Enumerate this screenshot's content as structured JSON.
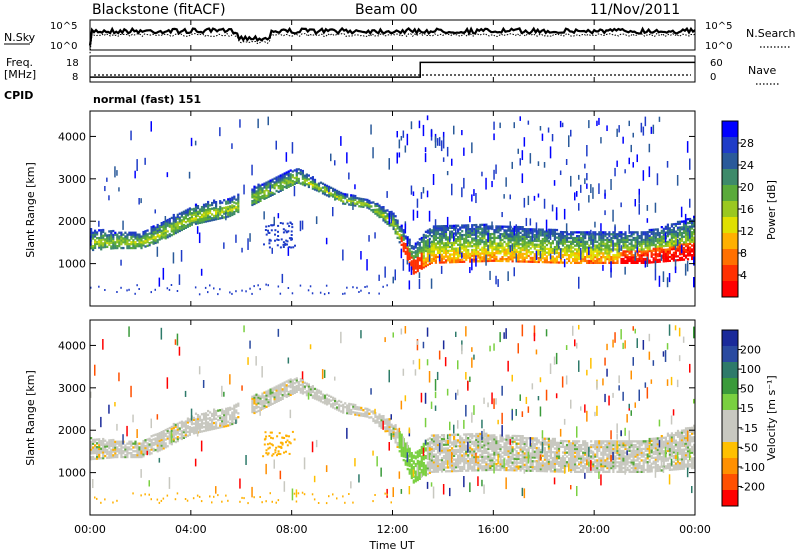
{
  "header": {
    "title": "Blackstone (fitACF)",
    "beam": "Beam 00",
    "date": "11/Nov/2011"
  },
  "nsky_panel": {
    "left_label": "N.Sky",
    "left_ticks": [
      "10^5",
      "10^0"
    ],
    "right_ticks": [
      "10^5",
      "10^0"
    ],
    "right_label": "N.Search"
  },
  "freq_panel": {
    "left_label_1": "Freq.",
    "left_label_2": "[MHz]",
    "left_ticks": [
      "18",
      "8"
    ],
    "right_ticks": [
      "60",
      "0"
    ],
    "right_label": "Nave",
    "cpid_label": "CPID",
    "cpid_text": "normal (fast) 151",
    "nave_step": {
      "before": 10,
      "after": 62,
      "step_time_h": 13.1
    },
    "freq_level_mhz": 11.5
  },
  "x_ticks": [
    "00:00",
    "04:00",
    "08:00",
    "12:00",
    "16:00",
    "20:00",
    "00:00"
  ],
  "x_label": "Time UT",
  "power_panel": {
    "ylabel": "Slant Range [km]",
    "yticks": [
      "4000",
      "3000",
      "2000",
      "1000"
    ],
    "colorbar_label": "Power [dB]",
    "colorbar_ticks": [
      "28",
      "24",
      "20",
      "16",
      "12",
      "8",
      "4"
    ],
    "colors": [
      "#0000ff",
      "#1f3cc8",
      "#2a5a9a",
      "#3e8a6a",
      "#5aaa3a",
      "#9ac820",
      "#e0e000",
      "#ffb000",
      "#ff7000",
      "#ff3000",
      "#ff0000"
    ]
  },
  "velocity_panel": {
    "ylabel": "Slant Range [km]",
    "yticks": [
      "4000",
      "3000",
      "2000",
      "1000"
    ],
    "colorbar_label": "Velocity [m s⁻¹]",
    "colorbar_ticks": [
      "200",
      "100",
      "50",
      "15",
      "-15",
      "-50",
      "-100",
      "-200"
    ],
    "colors": [
      "#1a2a9a",
      "#2a4aa0",
      "#2e7a6a",
      "#3a9a3a",
      "#7ad040",
      "#c8c8c0",
      "#c8c8c0",
      "#ffc000",
      "#ff9000",
      "#ff5000",
      "#ff0000"
    ]
  },
  "chart_data": {
    "type": "heatmap",
    "title": "Blackstone (fitACF)",
    "subtitle": "Beam 00",
    "date": "11/Nov/2011",
    "xlabel": "Time UT",
    "x_range_hours": [
      0,
      24
    ],
    "x_ticks": [
      "00:00",
      "04:00",
      "08:00",
      "12:00",
      "16:00",
      "20:00",
      "00:00"
    ],
    "ylabel": "Slant Range [km]",
    "ylim": [
      0,
      4600
    ],
    "y_ticks": [
      1000,
      2000,
      3000,
      4000
    ],
    "panels": [
      {
        "name": "Power [dB]",
        "colorbar_range": [
          0,
          30
        ],
        "colorbar_ticks": [
          4,
          8,
          12,
          16,
          20,
          24,
          28
        ]
      },
      {
        "name": "Velocity [m s⁻¹]",
        "colorbar_range": [
          -250,
          250
        ],
        "colorbar_ticks": [
          200,
          100,
          50,
          15,
          -15,
          -50,
          -100,
          -200
        ]
      }
    ],
    "main_echo_band": [
      {
        "t": 0.0,
        "r_low": 1300,
        "r_high": 1800
      },
      {
        "t": 1.0,
        "r_low": 1350,
        "r_high": 1750
      },
      {
        "t": 2.0,
        "r_low": 1350,
        "r_high": 1700
      },
      {
        "t": 2.7,
        "r_low": 1500,
        "r_high": 1950
      },
      {
        "t": 4.0,
        "r_low": 1900,
        "r_high": 2350
      },
      {
        "t": 5.5,
        "r_low": 2100,
        "r_high": 2550
      },
      {
        "t": 8.2,
        "r_low": 2900,
        "r_high": 3250
      },
      {
        "t": 9.0,
        "r_low": 2700,
        "r_high": 2950
      },
      {
        "t": 10.0,
        "r_low": 2400,
        "r_high": 2650
      },
      {
        "t": 11.0,
        "r_low": 2300,
        "r_high": 2500
      },
      {
        "t": 12.0,
        "r_low": 1800,
        "r_high": 2200
      },
      {
        "t": 12.8,
        "r_low": 750,
        "r_high": 1400
      },
      {
        "t": 13.5,
        "r_low": 1000,
        "r_high": 1900
      },
      {
        "t": 16.0,
        "r_low": 1050,
        "r_high": 1900
      },
      {
        "t": 19.0,
        "r_low": 1000,
        "r_high": 1750
      },
      {
        "t": 22.0,
        "r_low": 1000,
        "r_high": 1750
      },
      {
        "t": 24.0,
        "r_low": 1100,
        "r_high": 2100
      }
    ]
  }
}
